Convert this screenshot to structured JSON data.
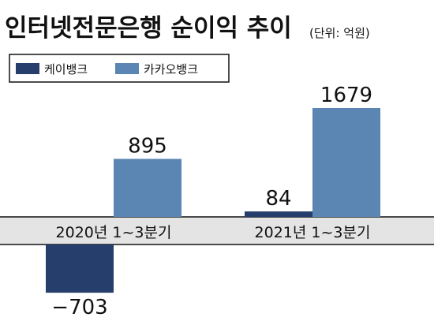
{
  "chart_data": {
    "type": "bar",
    "title": "인터넷전문은행 순이익 추이",
    "unit_label": "(단위: 억원)",
    "categories": [
      "2020년 1~3분기",
      "2021년 1~3분기"
    ],
    "series": [
      {
        "name": "케이뱅크",
        "values": [
          -703,
          84
        ],
        "color": "#253e6b"
      },
      {
        "name": "카카오뱅크",
        "values": [
          895,
          1679
        ],
        "color": "#5b85b2"
      }
    ],
    "data_labels": [
      [
        "−703",
        "84"
      ],
      [
        "895",
        "1679"
      ]
    ],
    "legend_position": "top-left",
    "axis_band_color": "#e4e4e4",
    "grid": false
  }
}
